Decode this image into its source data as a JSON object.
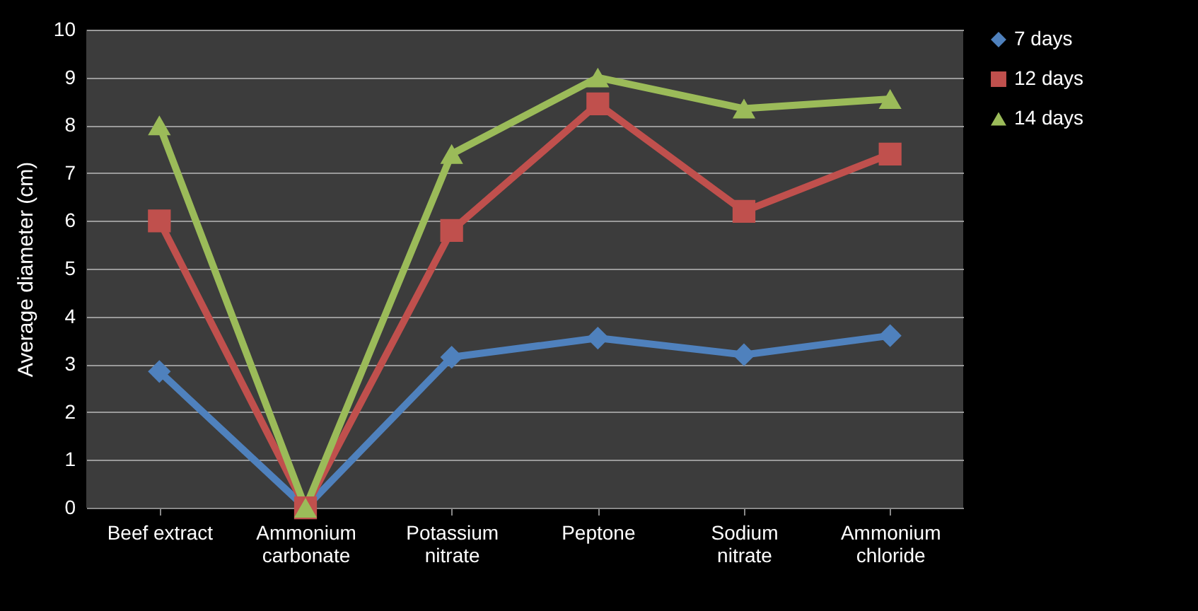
{
  "chart_data": {
    "type": "line",
    "ylabel": "Average diameter (cm)",
    "categories": [
      "Beef extract",
      "Ammonium carbonate",
      "Potassium nitrate",
      "Peptone",
      "Sodium nitrate",
      "Ammonium chloride"
    ],
    "series": [
      {
        "name": "7 days",
        "color": "#4f81bd",
        "marker": "diamond",
        "values": [
          2.85,
          0,
          3.15,
          3.55,
          3.2,
          3.6
        ]
      },
      {
        "name": "12 days",
        "color": "#c0504d",
        "marker": "square",
        "values": [
          6.0,
          0,
          5.8,
          8.45,
          6.2,
          7.4
        ]
      },
      {
        "name": "14 days",
        "color": "#9bbb59",
        "marker": "triangle",
        "values": [
          8.0,
          0,
          7.4,
          9.0,
          8.35,
          8.55
        ]
      }
    ],
    "ylim": [
      0,
      10
    ],
    "yticks": [
      0,
      1,
      2,
      3,
      4,
      5,
      6,
      7,
      8,
      9,
      10
    ],
    "grid": "y",
    "legend": "right"
  }
}
